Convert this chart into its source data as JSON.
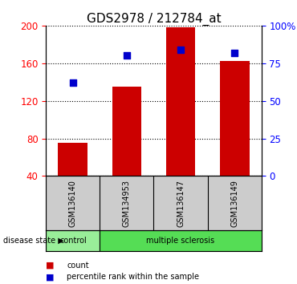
{
  "title": "GDS2978 / 212784_at",
  "samples": [
    "GSM136140",
    "GSM134953",
    "GSM136147",
    "GSM136149"
  ],
  "bar_values": [
    75,
    135,
    198,
    162
  ],
  "percentile_values": [
    62,
    80,
    84,
    82
  ],
  "bar_color": "#cc0000",
  "percentile_color": "#0000cc",
  "ylim_left": [
    40,
    200
  ],
  "ylim_right": [
    0,
    100
  ],
  "yticks_left": [
    40,
    80,
    120,
    160,
    200
  ],
  "yticks_right": [
    0,
    25,
    50,
    75,
    100
  ],
  "ytick_labels_right": [
    "0",
    "25",
    "50",
    "75",
    "100%"
  ],
  "disease_groups": [
    {
      "label": "control",
      "color": "#99ee99"
    },
    {
      "label": "multiple sclerosis",
      "color": "#55dd55"
    }
  ],
  "disease_state_label": "disease state",
  "legend_items": [
    {
      "label": "count",
      "color": "#cc0000"
    },
    {
      "label": "percentile rank within the sample",
      "color": "#0000cc"
    }
  ],
  "bar_width": 0.55,
  "background_color": "#ffffff",
  "label_area_color": "#cccccc",
  "title_fontsize": 11,
  "tick_fontsize": 8.5
}
